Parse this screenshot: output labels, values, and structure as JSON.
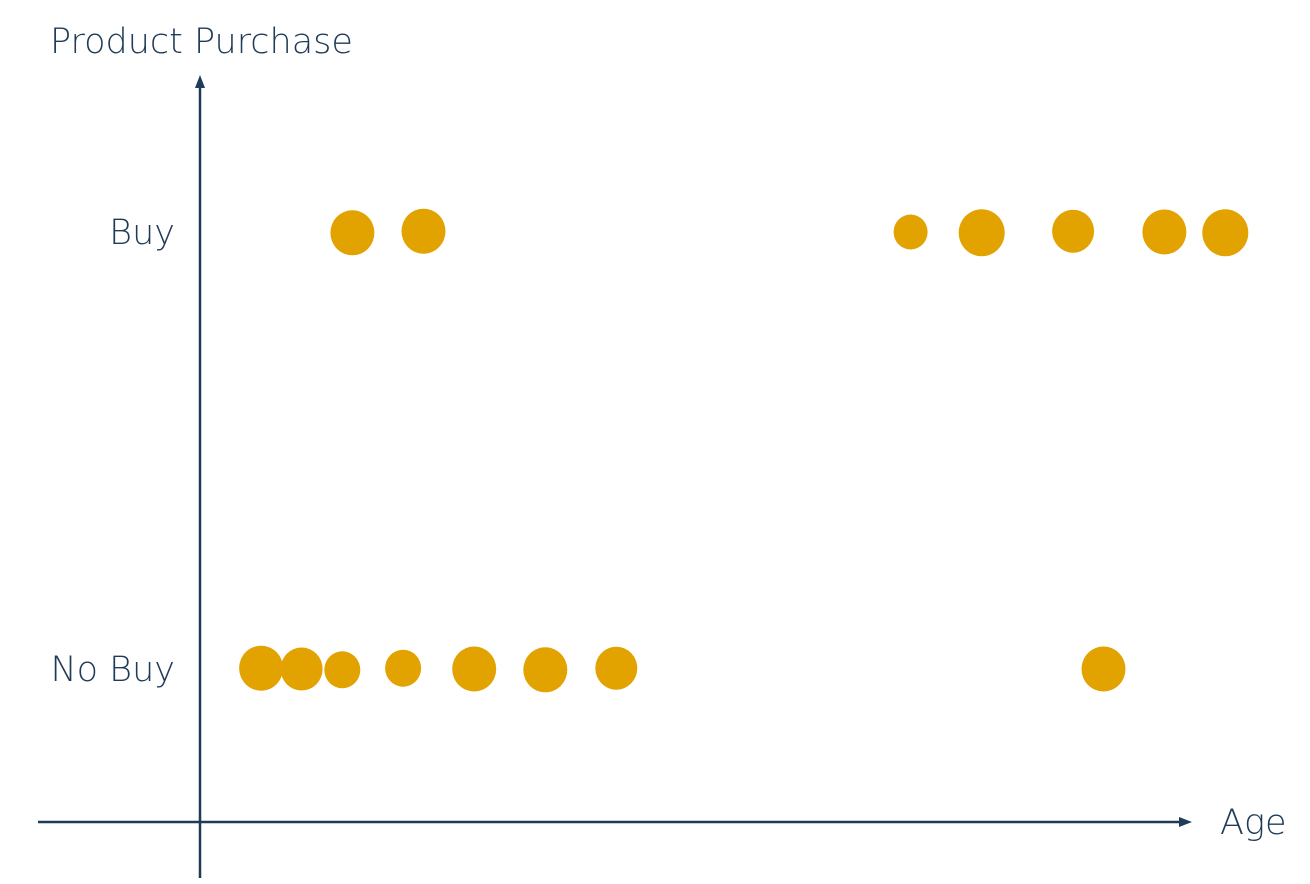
{
  "chart_data": {
    "type": "scatter",
    "title": "",
    "xlabel": "Age",
    "ylabel": "Product Purchase",
    "y_categories": [
      "No Buy",
      "Buy"
    ],
    "grid": false,
    "legend": "none",
    "colors": {
      "point": "#e2a300",
      "axis": "#1f3b57",
      "text": "#1f3b57"
    },
    "series": [
      {
        "points": [
          {
            "x": 7,
            "y": "No Buy"
          },
          {
            "x": 11,
            "y": "No Buy"
          },
          {
            "x": 15,
            "y": "No Buy"
          },
          {
            "x": 21,
            "y": "No Buy"
          },
          {
            "x": 28,
            "y": "No Buy"
          },
          {
            "x": 35,
            "y": "No Buy"
          },
          {
            "x": 42,
            "y": "No Buy"
          },
          {
            "x": 90,
            "y": "No Buy"
          },
          {
            "x": 16,
            "y": "Buy"
          },
          {
            "x": 23,
            "y": "Buy"
          },
          {
            "x": 71,
            "y": "Buy"
          },
          {
            "x": 78,
            "y": "Buy"
          },
          {
            "x": 87,
            "y": "Buy"
          },
          {
            "x": 96,
            "y": "Buy"
          },
          {
            "x": 102,
            "y": "Buy"
          }
        ]
      }
    ],
    "xlim": [
      0,
      100
    ]
  }
}
